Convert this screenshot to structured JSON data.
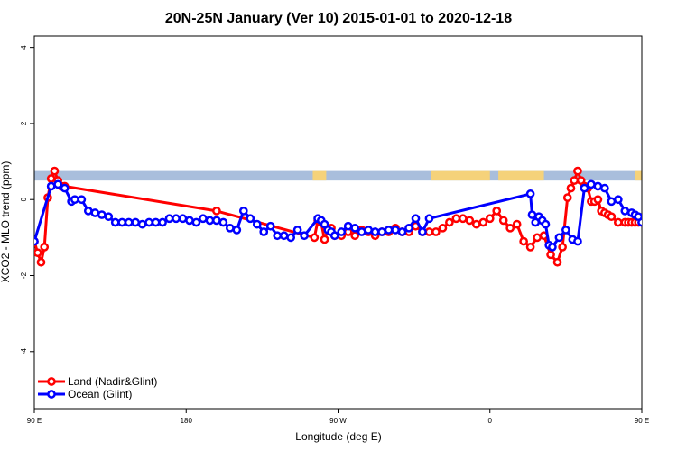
{
  "chart_data": {
    "type": "line",
    "title": "20N-25N January (Ver 10)   2015-01-01 to 2020-12-18",
    "xlabel": "Longitude (deg E)",
    "ylabel": "XCO2 - MLO trend (ppm)",
    "xlim": [
      90,
      450
    ],
    "ylim": [
      -5.5,
      4.3
    ],
    "x_ticks": [
      {
        "value": 90,
        "label": "90 E"
      },
      {
        "value": 180,
        "label": "180"
      },
      {
        "value": 270,
        "label": "90 W"
      },
      {
        "value": 360,
        "label": "0"
      },
      {
        "value": 450,
        "label": "90 E"
      },
      {
        "value": 540,
        "label": "180"
      }
    ],
    "y_ticks": [
      -4,
      -2,
      0,
      2,
      4
    ],
    "grid": false,
    "legend_position": "bottom-left",
    "map_strip": {
      "y_range": [
        0.5,
        0.75
      ],
      "ocean_color": "#a9bedc",
      "land_color": "#f5d27a",
      "land_spans": [
        [
          255,
          263
        ],
        [
          325,
          360
        ],
        [
          365,
          392
        ],
        [
          446,
          459
        ]
      ]
    },
    "series": [
      {
        "name": "Land (Nadir&Glint)",
        "color": "#ff0000",
        "x": [
          90,
          92,
          94,
          96,
          98,
          100,
          102,
          104,
          106,
          108,
          198,
          256,
          258,
          260,
          262,
          264,
          266,
          268,
          272,
          276,
          280,
          284,
          288,
          292,
          296,
          300,
          304,
          308,
          312,
          316,
          320,
          324,
          328,
          332,
          336,
          340,
          344,
          348,
          352,
          356,
          360,
          364,
          368,
          372,
          376,
          380,
          384,
          388,
          392,
          396,
          400,
          403,
          406,
          408,
          410,
          412,
          414,
          416,
          418,
          420,
          422,
          424,
          426,
          428,
          430,
          432,
          436,
          440,
          442,
          444,
          446,
          448,
          450
        ],
        "y": [
          -1.1,
          -1.4,
          -1.65,
          -1.25,
          0.05,
          0.55,
          0.75,
          0.5,
          0.35,
          0.35,
          -0.3,
          -1.0,
          -0.55,
          -0.6,
          -1.05,
          -0.8,
          -0.75,
          -0.95,
          -0.95,
          -0.85,
          -0.95,
          -0.8,
          -0.85,
          -0.95,
          -0.85,
          -0.85,
          -0.75,
          -0.85,
          -0.85,
          -0.7,
          -0.85,
          -0.85,
          -0.85,
          -0.75,
          -0.6,
          -0.5,
          -0.5,
          -0.55,
          -0.65,
          -0.6,
          -0.5,
          -0.3,
          -0.55,
          -0.75,
          -0.65,
          -1.1,
          -1.25,
          -1.0,
          -0.95,
          -1.45,
          -1.65,
          -1.25,
          0.05,
          0.3,
          0.5,
          0.75,
          0.5,
          0.35,
          0.3,
          -0.05,
          -0.05,
          0.0,
          -0.3,
          -0.35,
          -0.4,
          -0.45,
          -0.6,
          -0.6,
          -0.6,
          -0.6,
          -0.6,
          -0.6,
          -0.6
        ]
      },
      {
        "name": "Ocean (Glint)",
        "color": "#0000ff",
        "x": [
          90,
          100,
          104,
          108,
          112,
          114,
          118,
          122,
          126,
          130,
          134,
          138,
          142,
          146,
          150,
          154,
          158,
          162,
          166,
          170,
          174,
          178,
          182,
          186,
          190,
          194,
          198,
          202,
          206,
          210,
          214,
          218,
          222,
          226,
          230,
          234,
          238,
          242,
          246,
          250,
          258,
          260,
          262,
          264,
          266,
          268,
          272,
          276,
          280,
          284,
          288,
          292,
          296,
          300,
          304,
          308,
          312,
          316,
          320,
          324,
          384,
          385,
          387,
          389,
          391,
          393,
          395,
          397,
          401,
          405,
          409,
          412,
          416,
          420,
          424,
          428,
          432,
          436,
          440,
          444,
          446,
          448,
          450
        ],
        "y": [
          -1.1,
          0.35,
          0.4,
          0.3,
          -0.05,
          0.0,
          0.0,
          -0.3,
          -0.35,
          -0.4,
          -0.45,
          -0.6,
          -0.6,
          -0.6,
          -0.6,
          -0.65,
          -0.6,
          -0.6,
          -0.6,
          -0.5,
          -0.5,
          -0.5,
          -0.55,
          -0.6,
          -0.5,
          -0.55,
          -0.55,
          -0.6,
          -0.75,
          -0.8,
          -0.3,
          -0.5,
          -0.65,
          -0.85,
          -0.7,
          -0.95,
          -0.95,
          -1.0,
          -0.8,
          -0.95,
          -0.5,
          -0.55,
          -0.65,
          -0.8,
          -0.85,
          -0.95,
          -0.85,
          -0.7,
          -0.75,
          -0.85,
          -0.8,
          -0.85,
          -0.85,
          -0.8,
          -0.8,
          -0.85,
          -0.75,
          -0.5,
          -0.85,
          -0.5,
          0.15,
          -0.4,
          -0.6,
          -0.45,
          -0.55,
          -0.65,
          -1.2,
          -1.25,
          -1.0,
          -0.8,
          -1.05,
          -1.1,
          0.3,
          0.4,
          0.35,
          0.3,
          -0.05,
          0.0,
          -0.3,
          -0.35,
          -0.4,
          -0.45,
          -0.6
        ]
      }
    ]
  }
}
